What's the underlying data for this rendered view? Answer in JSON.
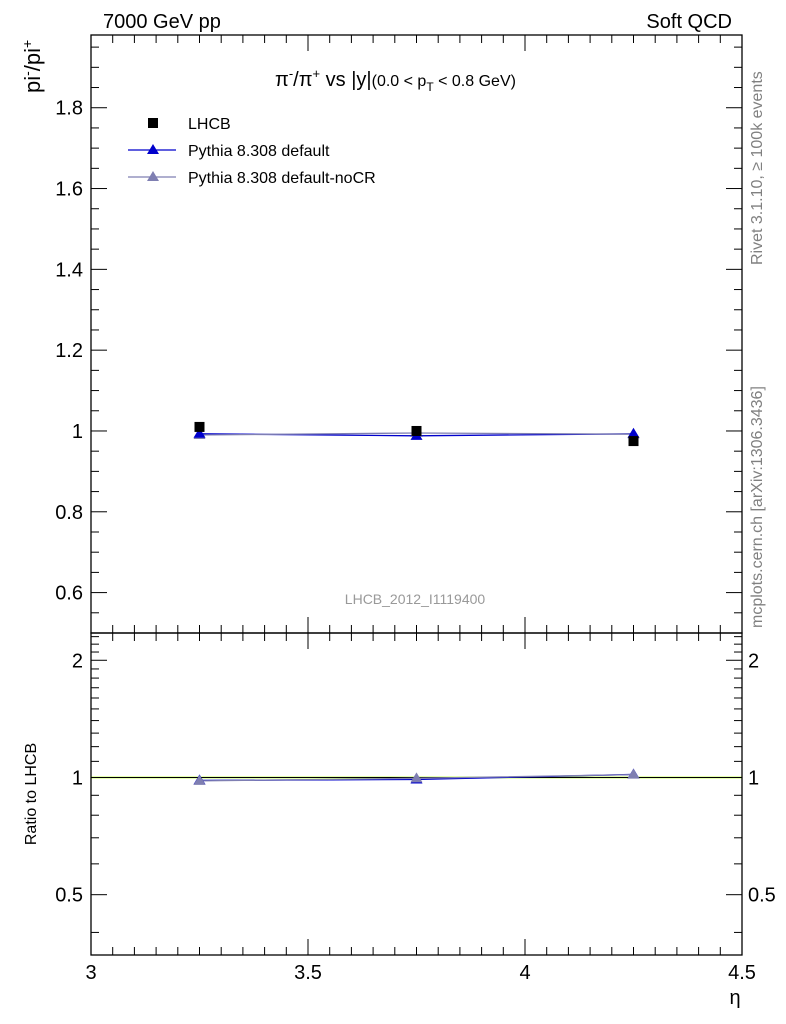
{
  "header": {
    "left": "7000 GeV pp",
    "right": "Soft QCD"
  },
  "side_labels": {
    "rivet": "Rivet 3.1.10, ≥ 100k events",
    "mcplots": "mcplots.cern.ch [arXiv:1306.3436]"
  },
  "watermark": "LHCB_2012_I1119400",
  "chart_data": [
    {
      "type": "scatter",
      "title": "π⁻/π⁺ vs |y|",
      "title_parts": {
        "main": "π",
        "sup1": "-",
        "mid": "/π",
        "sup2": "+",
        "tail": " vs |y|",
        "range_open": "(0.0 < p",
        "range_sub": "T",
        "range_close": " < 0.8 GeV)"
      },
      "ylabel": "pi⁻/pi⁺",
      "ylabel_parts": {
        "base1": "pi",
        "sup1": "-",
        "base2": "/pi",
        "sup2": "+"
      },
      "xlim": [
        3.0,
        4.5
      ],
      "ylim": [
        0.5,
        1.98
      ],
      "yticks": [
        0.6,
        0.8,
        1.0,
        1.2,
        1.4,
        1.6,
        1.8
      ],
      "ytick_labels": [
        "0.6",
        "0.8",
        "1",
        "1.2",
        "1.4",
        "1.6",
        "1.8"
      ],
      "legend_position": "top-left",
      "series": [
        {
          "name": "LHCB",
          "x": [
            3.25,
            3.75,
            4.25
          ],
          "y": [
            1.01,
            1.0,
            0.975
          ],
          "marker": "square",
          "color": "#000000",
          "line": false
        },
        {
          "name": "Pythia 8.308 default",
          "x": [
            3.25,
            3.75,
            4.25
          ],
          "y": [
            0.993,
            0.988,
            0.993
          ],
          "marker": "triangle",
          "color": "#0000cc",
          "line": true
        },
        {
          "name": "Pythia 8.308 default-noCR",
          "x": [
            3.25,
            3.75,
            4.25
          ],
          "y": [
            0.99,
            0.995,
            0.992
          ],
          "marker": "triangle",
          "color": "#7f7fb2",
          "line": true
        }
      ]
    },
    {
      "type": "line",
      "ylabel": "Ratio to LHCB",
      "xlabel": "η",
      "xlim": [
        3.0,
        4.5
      ],
      "ylim": [
        0.35,
        2.35
      ],
      "yscale": "log",
      "yticks": [
        0.5,
        1,
        2
      ],
      "ytick_labels": [
        "0.5",
        "1",
        "2"
      ],
      "xticks": [
        3.0,
        3.5,
        4.0,
        4.5
      ],
      "xtick_labels": [
        "3",
        "3.5",
        "4",
        "4.5"
      ],
      "reference_band_color": "#ccff66",
      "series": [
        {
          "x": [
            3.25,
            3.75,
            4.25
          ],
          "y": [
            0.983,
            0.988,
            1.018
          ],
          "marker": "triangle",
          "color": "#0000cc"
        },
        {
          "x": [
            3.25,
            3.75,
            4.25
          ],
          "y": [
            0.98,
            0.995,
            1.017
          ],
          "marker": "triangle",
          "color": "#7f7fb2"
        }
      ]
    }
  ]
}
